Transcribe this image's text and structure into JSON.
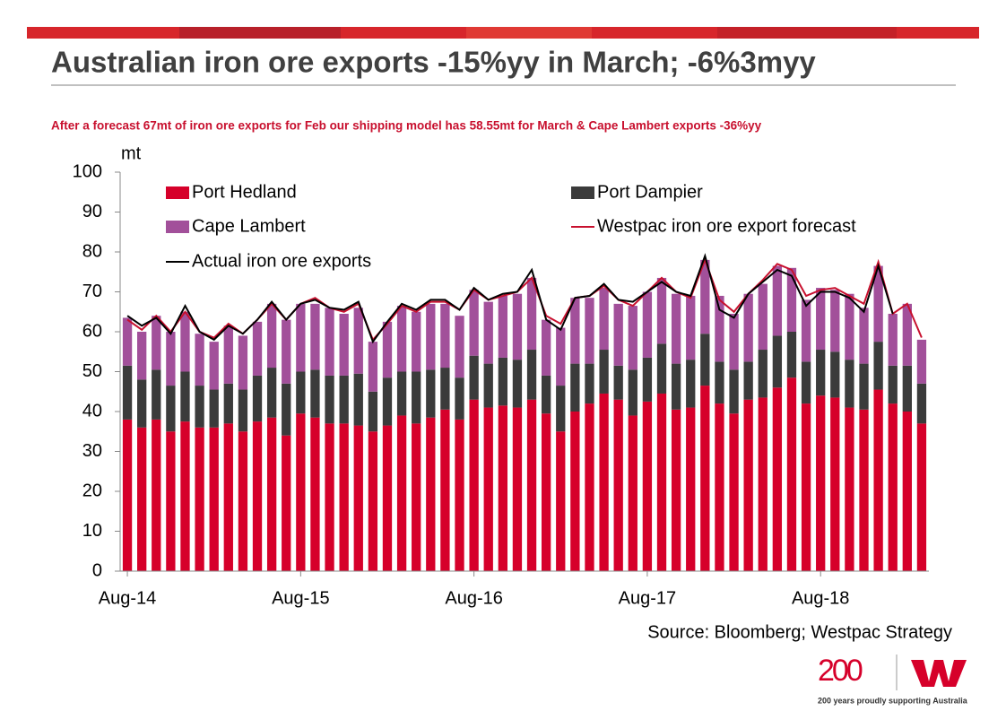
{
  "chart_data": {
    "type": "bar",
    "title": "Australian iron ore exports -15%yy in March; -6%3myy",
    "subtitle": "After a forecast 67mt of iron ore exports for Feb our shipping  model has 58.55mt for March & Cape Lambert exports -36%yy",
    "y_label": "mt",
    "source": "Source: Bloomberg;  Westpac Strategy",
    "categories": [
      "Aug-14",
      null,
      null,
      null,
      null,
      null,
      null,
      null,
      null,
      null,
      null,
      null,
      "Aug-15",
      null,
      null,
      null,
      null,
      null,
      null,
      null,
      null,
      null,
      null,
      null,
      "Aug-16",
      null,
      null,
      null,
      null,
      null,
      null,
      null,
      null,
      null,
      null,
      null,
      "Aug-17",
      null,
      null,
      null,
      null,
      null,
      null,
      null,
      null,
      null,
      null,
      null,
      "Aug-18",
      null,
      null,
      null,
      null,
      null,
      null,
      null
    ],
    "ylim": [
      0,
      100
    ],
    "yticks": [
      0,
      10,
      20,
      30,
      40,
      50,
      60,
      70,
      80,
      90,
      100
    ],
    "series": [
      {
        "name": "Port Hedland",
        "type": "bar",
        "color": "#d6002a",
        "values": [
          38,
          36,
          38,
          35,
          37.5,
          36,
          36,
          37,
          35,
          37.5,
          38.5,
          34,
          39.5,
          38.5,
          37,
          37,
          36.5,
          35,
          36.5,
          39,
          37,
          38.5,
          40.5,
          38,
          43,
          41,
          41.5,
          41,
          43,
          39.5,
          35,
          40,
          42,
          44.5,
          43,
          39,
          42.5,
          44.5,
          40.5,
          41,
          46.5,
          42,
          39.5,
          43,
          43.5,
          46,
          48.5,
          42,
          44,
          43.5,
          41,
          40.5,
          45.5,
          42,
          40,
          37
        ]
      },
      {
        "name": "Port Dampier",
        "type": "bar",
        "color": "#3b3b3b",
        "values": [
          13.5,
          12,
          12.5,
          11.5,
          12.5,
          10.5,
          9.5,
          10,
          10.5,
          11.5,
          12.5,
          13,
          10.5,
          12,
          12,
          12,
          13,
          10,
          12,
          11,
          13,
          12,
          10.5,
          10.5,
          11,
          11,
          12,
          12,
          12.5,
          9.5,
          11.5,
          12,
          10,
          11,
          8.5,
          11.5,
          11,
          12.5,
          11.5,
          12,
          13,
          10.5,
          11,
          9.5,
          12,
          13,
          11.5,
          10.5,
          11.5,
          11.5,
          12,
          11.5,
          12,
          9.5,
          11.5,
          10
        ]
      },
      {
        "name": "Cape Lambert",
        "type": "bar",
        "color": "#a2509a",
        "values": [
          12,
          12,
          13.5,
          13.5,
          15,
          13,
          12,
          14.5,
          13.5,
          13.5,
          16,
          16,
          17,
          16.5,
          17,
          15.5,
          16.5,
          12.5,
          14,
          16.5,
          15,
          16.5,
          16,
          15.5,
          16.5,
          15.5,
          15.5,
          16.5,
          18,
          14,
          14.5,
          16.5,
          16.5,
          15.5,
          15.5,
          16,
          16.5,
          16.5,
          17.5,
          16,
          18.5,
          16.5,
          14,
          17,
          16.5,
          17.5,
          16,
          15.5,
          15.5,
          15.5,
          16.5,
          14,
          19,
          13,
          15.5,
          11
        ]
      },
      {
        "name": "Westpac iron ore export forecast",
        "type": "line",
        "color": "#c8102e",
        "values": [
          63,
          60.5,
          64,
          60,
          65,
          60,
          58.5,
          62,
          59.5,
          63,
          67,
          63,
          67,
          68.5,
          66,
          65,
          67,
          58,
          62,
          66.5,
          65,
          67.5,
          67.5,
          65.5,
          70.5,
          68,
          69,
          70,
          73.5,
          64,
          62,
          68.5,
          69,
          71.5,
          68,
          66.5,
          70,
          73.5,
          70,
          68.5,
          78,
          68,
          65,
          69.5,
          73,
          77,
          75.5,
          69,
          70.5,
          71,
          69,
          67,
          77.5,
          64.5,
          67,
          58.55
        ]
      },
      {
        "name": "Actual iron ore exports",
        "type": "line",
        "color": "#000000",
        "values": [
          64,
          61.5,
          63.5,
          59.5,
          66.5,
          60,
          58,
          61.5,
          59.5,
          63,
          67.5,
          63,
          67,
          68,
          66,
          65.5,
          67.5,
          57.5,
          62.5,
          67,
          65.5,
          68,
          68,
          65.5,
          71,
          68,
          69.5,
          70,
          75.5,
          63,
          60.5,
          68.5,
          69,
          72,
          68,
          67.5,
          70,
          72.5,
          70,
          69,
          79,
          65.5,
          63.5,
          69.5,
          72.5,
          75.5,
          74,
          66.5,
          70,
          70,
          68.5,
          65,
          76.5,
          64.5,
          null,
          null
        ]
      }
    ]
  },
  "branding": {
    "logo": "200",
    "tagline": "200 years proudly supporting Australia"
  }
}
